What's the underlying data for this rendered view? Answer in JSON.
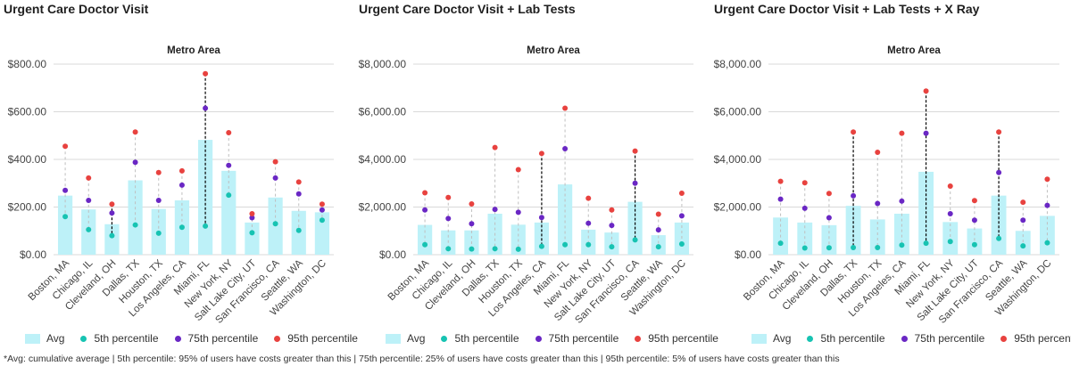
{
  "legend": {
    "avg": "Avg",
    "p5": "5th percentile",
    "p75": "75th percentile",
    "p95": "95th percentile"
  },
  "colors": {
    "avg_bar": "#bdf1f8",
    "p5": "#17c3b2",
    "p75": "#6a27c4",
    "p95": "#e8423f",
    "grid": "#d9d9d9",
    "whisker": "#bfbfbf",
    "highlight_whisker": "#000000"
  },
  "footnote": "*Avg: cumulative average | 5th percentile: 95% of users have costs greater than this | 75th percentile: 25% of users have costs greater than this | 95th percentile: 5% of users have costs greater than this",
  "chart_data": [
    {
      "type": "bar",
      "title": "Urgent Care Doctor Visit",
      "group_label": "Metro Area",
      "categories": [
        "Boston, MA",
        "Chicago, IL",
        "Cleveland, OH",
        "Dallas, TX",
        "Houston, TX",
        "Los Angeles, CA",
        "Miami, FL",
        "New York, NY",
        "Salt Lake City, UT",
        "San Francisco, CA",
        "Seattle, WA",
        "Washington, DC"
      ],
      "ylim": [
        0,
        800
      ],
      "yticks": [
        0,
        200,
        400,
        600,
        800
      ],
      "ytick_labels": [
        "$0.00",
        "$200.00",
        "$400.00",
        "$600.00",
        "$800.00"
      ],
      "highlight": [
        "Cleveland, OH",
        "Miami, FL"
      ],
      "series": [
        {
          "name": "Avg",
          "values": [
            248,
            190,
            128,
            312,
            192,
            228,
            482,
            352,
            135,
            240,
            184,
            178
          ]
        },
        {
          "name": "5th percentile",
          "values": [
            160,
            105,
            80,
            125,
            90,
            115,
            120,
            250,
            92,
            130,
            102,
            145
          ]
        },
        {
          "name": "75th percentile",
          "values": [
            270,
            228,
            175,
            388,
            228,
            292,
            615,
            375,
            155,
            322,
            255,
            188
          ]
        },
        {
          "name": "95th percentile",
          "values": [
            455,
            322,
            212,
            515,
            345,
            352,
            760,
            512,
            172,
            390,
            305,
            212
          ]
        }
      ]
    },
    {
      "type": "bar",
      "title": "Urgent Care Doctor Visit + Lab Tests",
      "group_label": "Metro Area",
      "categories": [
        "Boston, MA",
        "Chicago, IL",
        "Cleveland, OH",
        "Dallas, TX",
        "Houston, TX",
        "Los Angeles, CA",
        "Miami, FL",
        "New York, NY",
        "Salt Lake City, UT",
        "San Francisco, CA",
        "Seattle, WA",
        "Washington, DC"
      ],
      "ylim": [
        0,
        8000
      ],
      "yticks": [
        0,
        2000,
        4000,
        6000,
        8000
      ],
      "ytick_labels": [
        "$0.00",
        "$2,000.00",
        "$4,000.00",
        "$6,000.00",
        "$8,000.00"
      ],
      "highlight": [
        "Los Angeles, CA",
        "San Francisco, CA"
      ],
      "series": [
        {
          "name": "Avg",
          "values": [
            1250,
            1020,
            1020,
            1720,
            1260,
            1350,
            2950,
            1050,
            930,
            2220,
            820,
            1350
          ]
        },
        {
          "name": "5th percentile",
          "values": [
            420,
            250,
            240,
            250,
            230,
            350,
            420,
            420,
            330,
            620,
            330,
            450
          ]
        },
        {
          "name": "75th percentile",
          "values": [
            1880,
            1520,
            1300,
            1900,
            1780,
            1560,
            4450,
            1320,
            1230,
            3000,
            1040,
            1630
          ]
        },
        {
          "name": "95th percentile",
          "values": [
            2600,
            2400,
            2130,
            4500,
            3570,
            4250,
            6150,
            2370,
            1880,
            4350,
            1700,
            2580
          ]
        }
      ]
    },
    {
      "type": "bar",
      "title": "Urgent Care Doctor Visit + Lab Tests + X Ray",
      "group_label": "Metro Area",
      "categories": [
        "Boston, MA",
        "Chicago, IL",
        "Cleveland, OH",
        "Dallas, TX",
        "Houston, TX",
        "Los Angeles, CA",
        "Miami, FL",
        "New York, NY",
        "Salt Lake City, UT",
        "San Francisco, CA",
        "Seattle, WA",
        "Washington, DC"
      ],
      "ylim": [
        0,
        8000
      ],
      "yticks": [
        0,
        2000,
        4000,
        6000,
        8000
      ],
      "ytick_labels": [
        "$0.00",
        "$2,000.00",
        "$4,000.00",
        "$6,000.00",
        "$8,000.00"
      ],
      "highlight": [
        "Dallas, TX",
        "Miami, FL",
        "San Francisco, CA"
      ],
      "series": [
        {
          "name": "Avg",
          "values": [
            1560,
            1350,
            1240,
            2050,
            1480,
            1720,
            3480,
            1370,
            1100,
            2480,
            1000,
            1630
          ]
        },
        {
          "name": "5th percentile",
          "values": [
            480,
            280,
            290,
            300,
            300,
            400,
            480,
            550,
            420,
            680,
            370,
            500
          ]
        },
        {
          "name": "75th percentile",
          "values": [
            2330,
            1950,
            1550,
            2470,
            2150,
            2250,
            5100,
            1720,
            1450,
            3450,
            1450,
            2070
          ]
        },
        {
          "name": "95th percentile",
          "values": [
            3080,
            3020,
            2570,
            5150,
            4300,
            5100,
            6870,
            2880,
            2270,
            5150,
            2200,
            3170
          ]
        }
      ]
    }
  ]
}
